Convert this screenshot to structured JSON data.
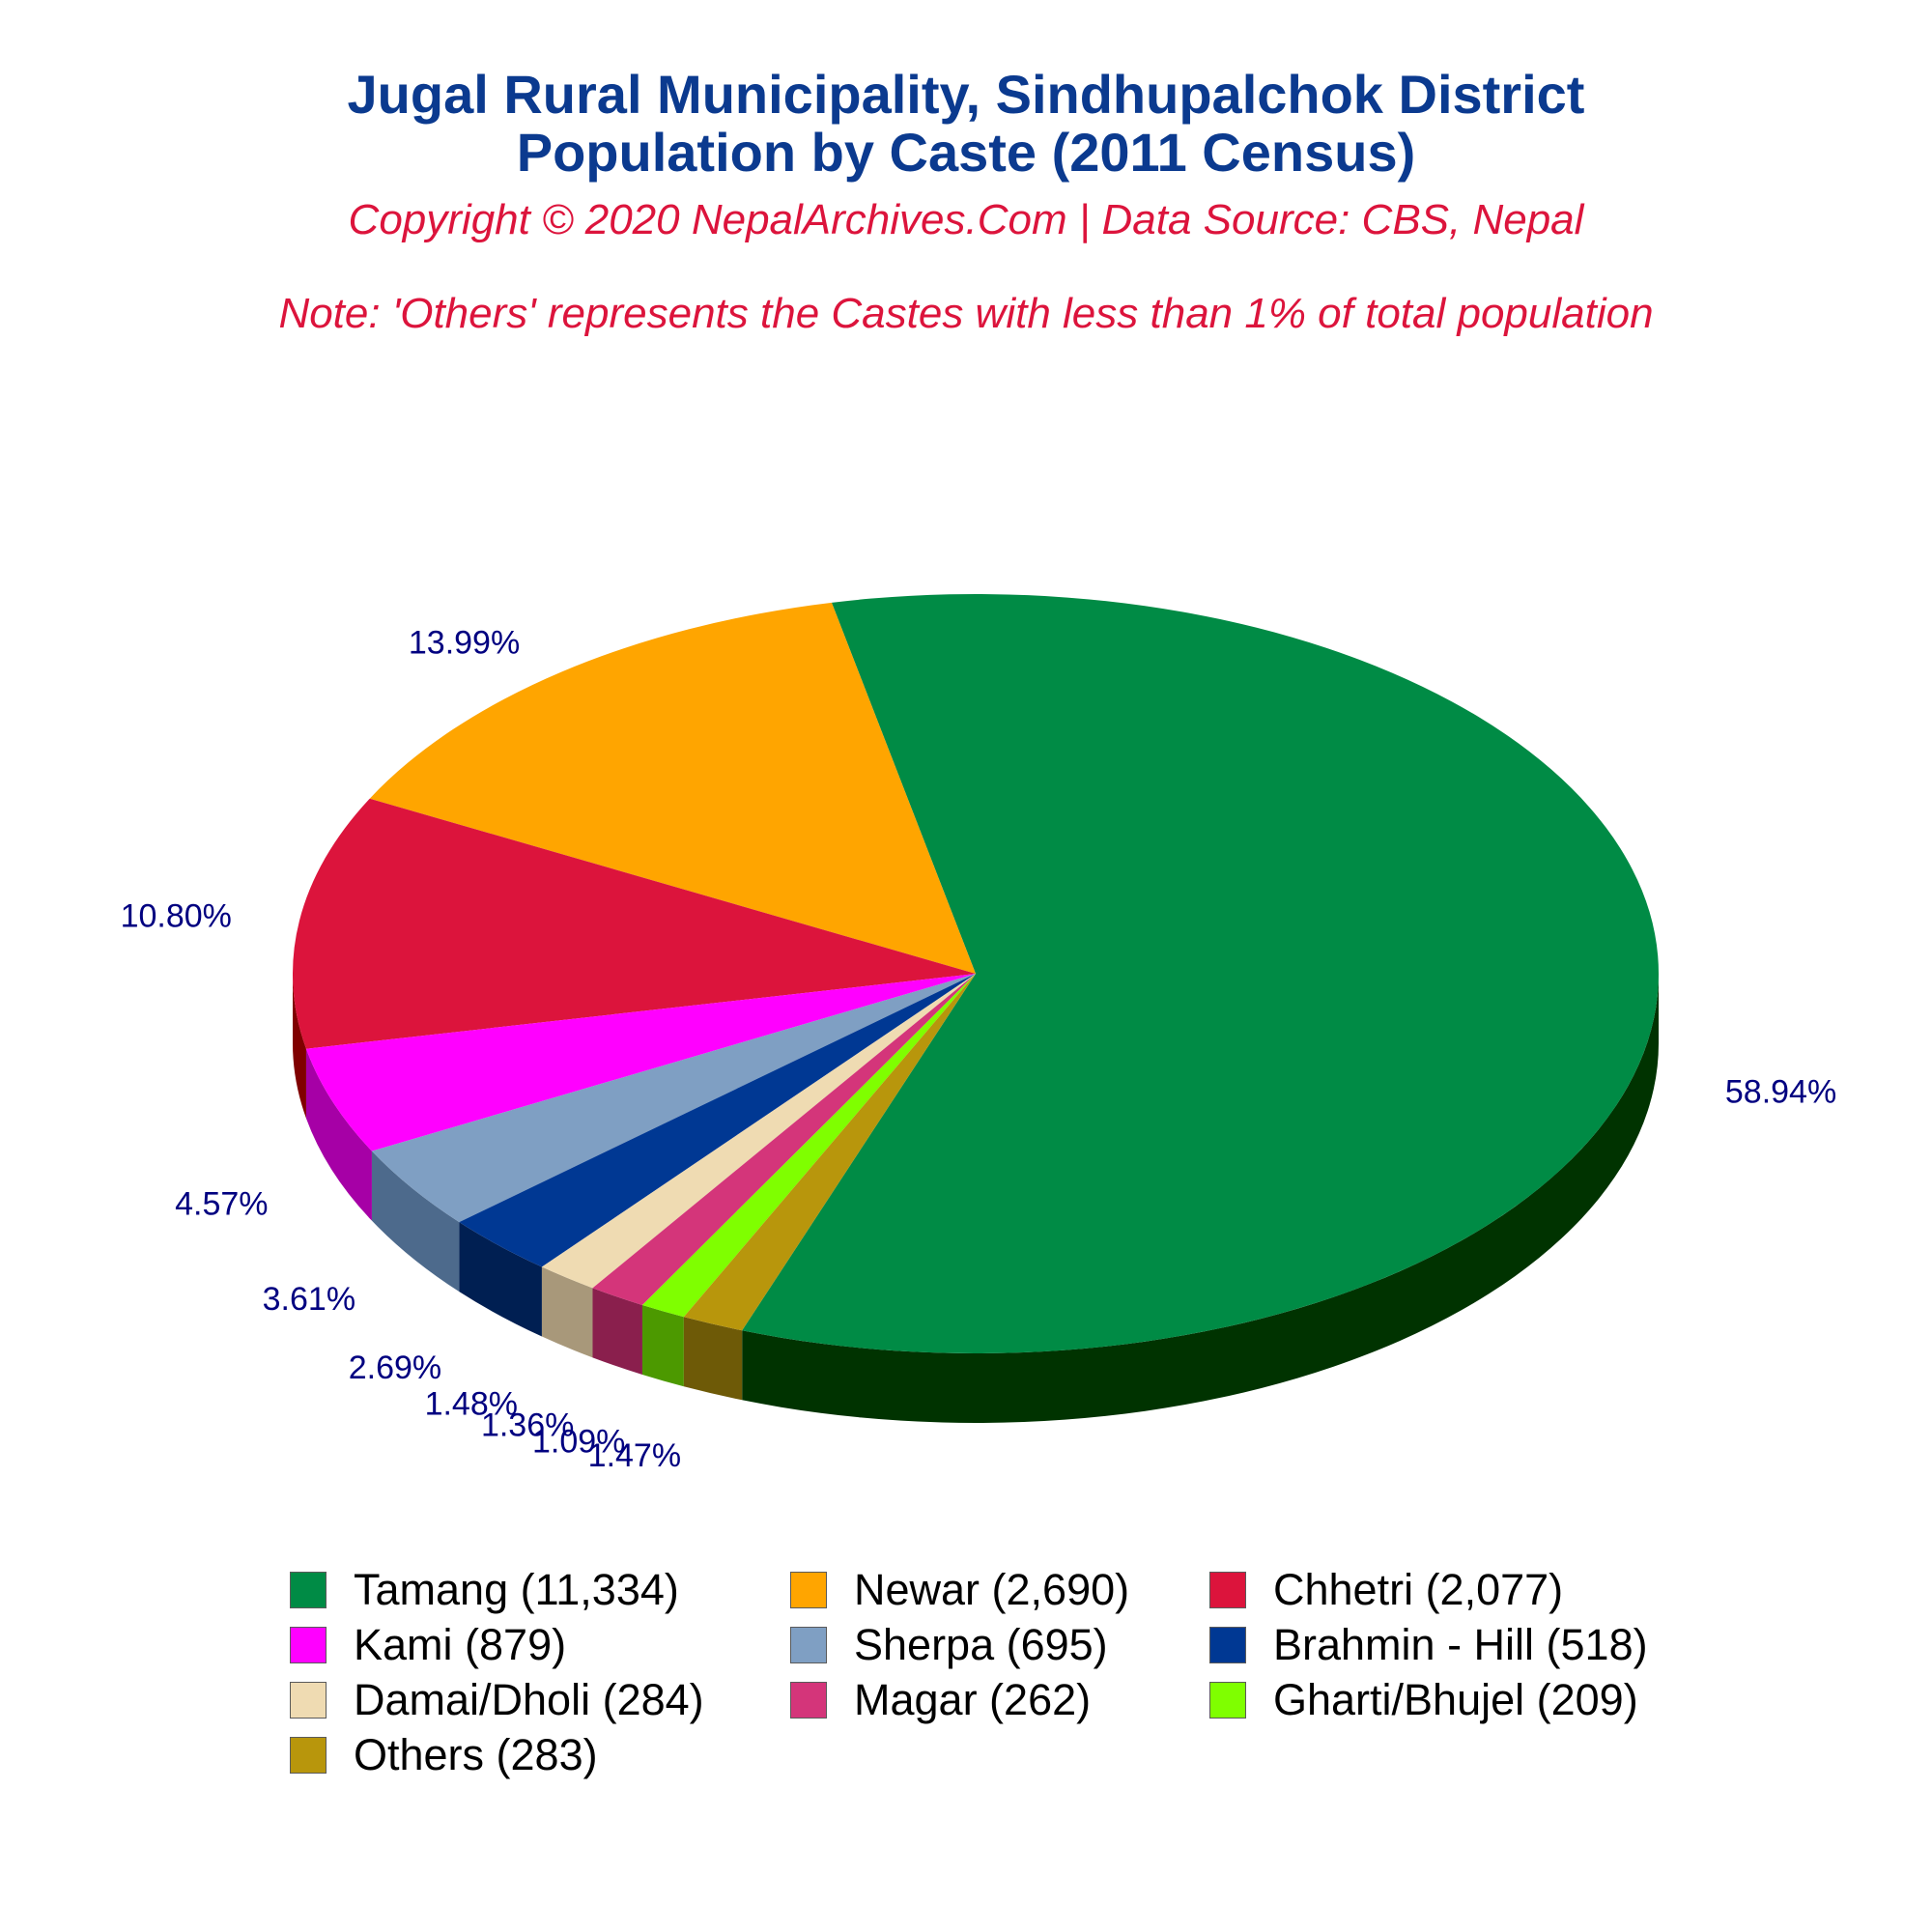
{
  "header": {
    "title_line1": "Jugal Rural Municipality, Sindhupalchok District",
    "title_line2": "Population by Caste (2011 Census)",
    "copyright": "Copyright © 2020 NepalArchives.Com | Data Source: CBS, Nepal",
    "note": "Note: 'Others' represents the Castes with less than 1% of total population"
  },
  "chart_data": {
    "type": "pie",
    "style": "3d",
    "title": "Jugal Rural Municipality, Sindhupalchok District Population by Caste (2011 Census)",
    "legend_position": "bottom",
    "slices": [
      {
        "label": "Tamang (11,334)",
        "value": 11334,
        "percent_label": "58.94%",
        "color": "#008b45",
        "side_color": "#003300"
      },
      {
        "label": "Newar (2,690)",
        "value": 2690,
        "percent_label": "13.99%",
        "color": "#ffa500",
        "side_color": "#a64b00"
      },
      {
        "label": "Chhetri (2,077)",
        "value": 2077,
        "percent_label": "10.80%",
        "color": "#dc143c",
        "side_color": "#800000"
      },
      {
        "label": "Kami (879)",
        "value": 879,
        "percent_label": "4.57%",
        "color": "#ff00ff",
        "side_color": "#a600a6"
      },
      {
        "label": "Sherpa (695)",
        "value": 695,
        "percent_label": "3.61%",
        "color": "#7f9fc3",
        "side_color": "#4d6a8c"
      },
      {
        "label": "Brahmin - Hill (518)",
        "value": 518,
        "percent_label": "2.69%",
        "color": "#003893",
        "side_color": "#001f52"
      },
      {
        "label": "Damai/Dholi (284)",
        "value": 284,
        "percent_label": "1.48%",
        "color": "#efdbb2",
        "side_color": "#a8987a"
      },
      {
        "label": "Magar (262)",
        "value": 262,
        "percent_label": "1.36%",
        "color": "#d4357a",
        "side_color": "#8a1f4d"
      },
      {
        "label": "Gharti/Bhujel (209)",
        "value": 209,
        "percent_label": "1.09%",
        "color": "#7fff00",
        "side_color": "#4c9900"
      },
      {
        "label": "Others (283)",
        "value": 283,
        "percent_label": "1.47%",
        "color": "#b8960c",
        "side_color": "#6e5a07"
      }
    ]
  }
}
